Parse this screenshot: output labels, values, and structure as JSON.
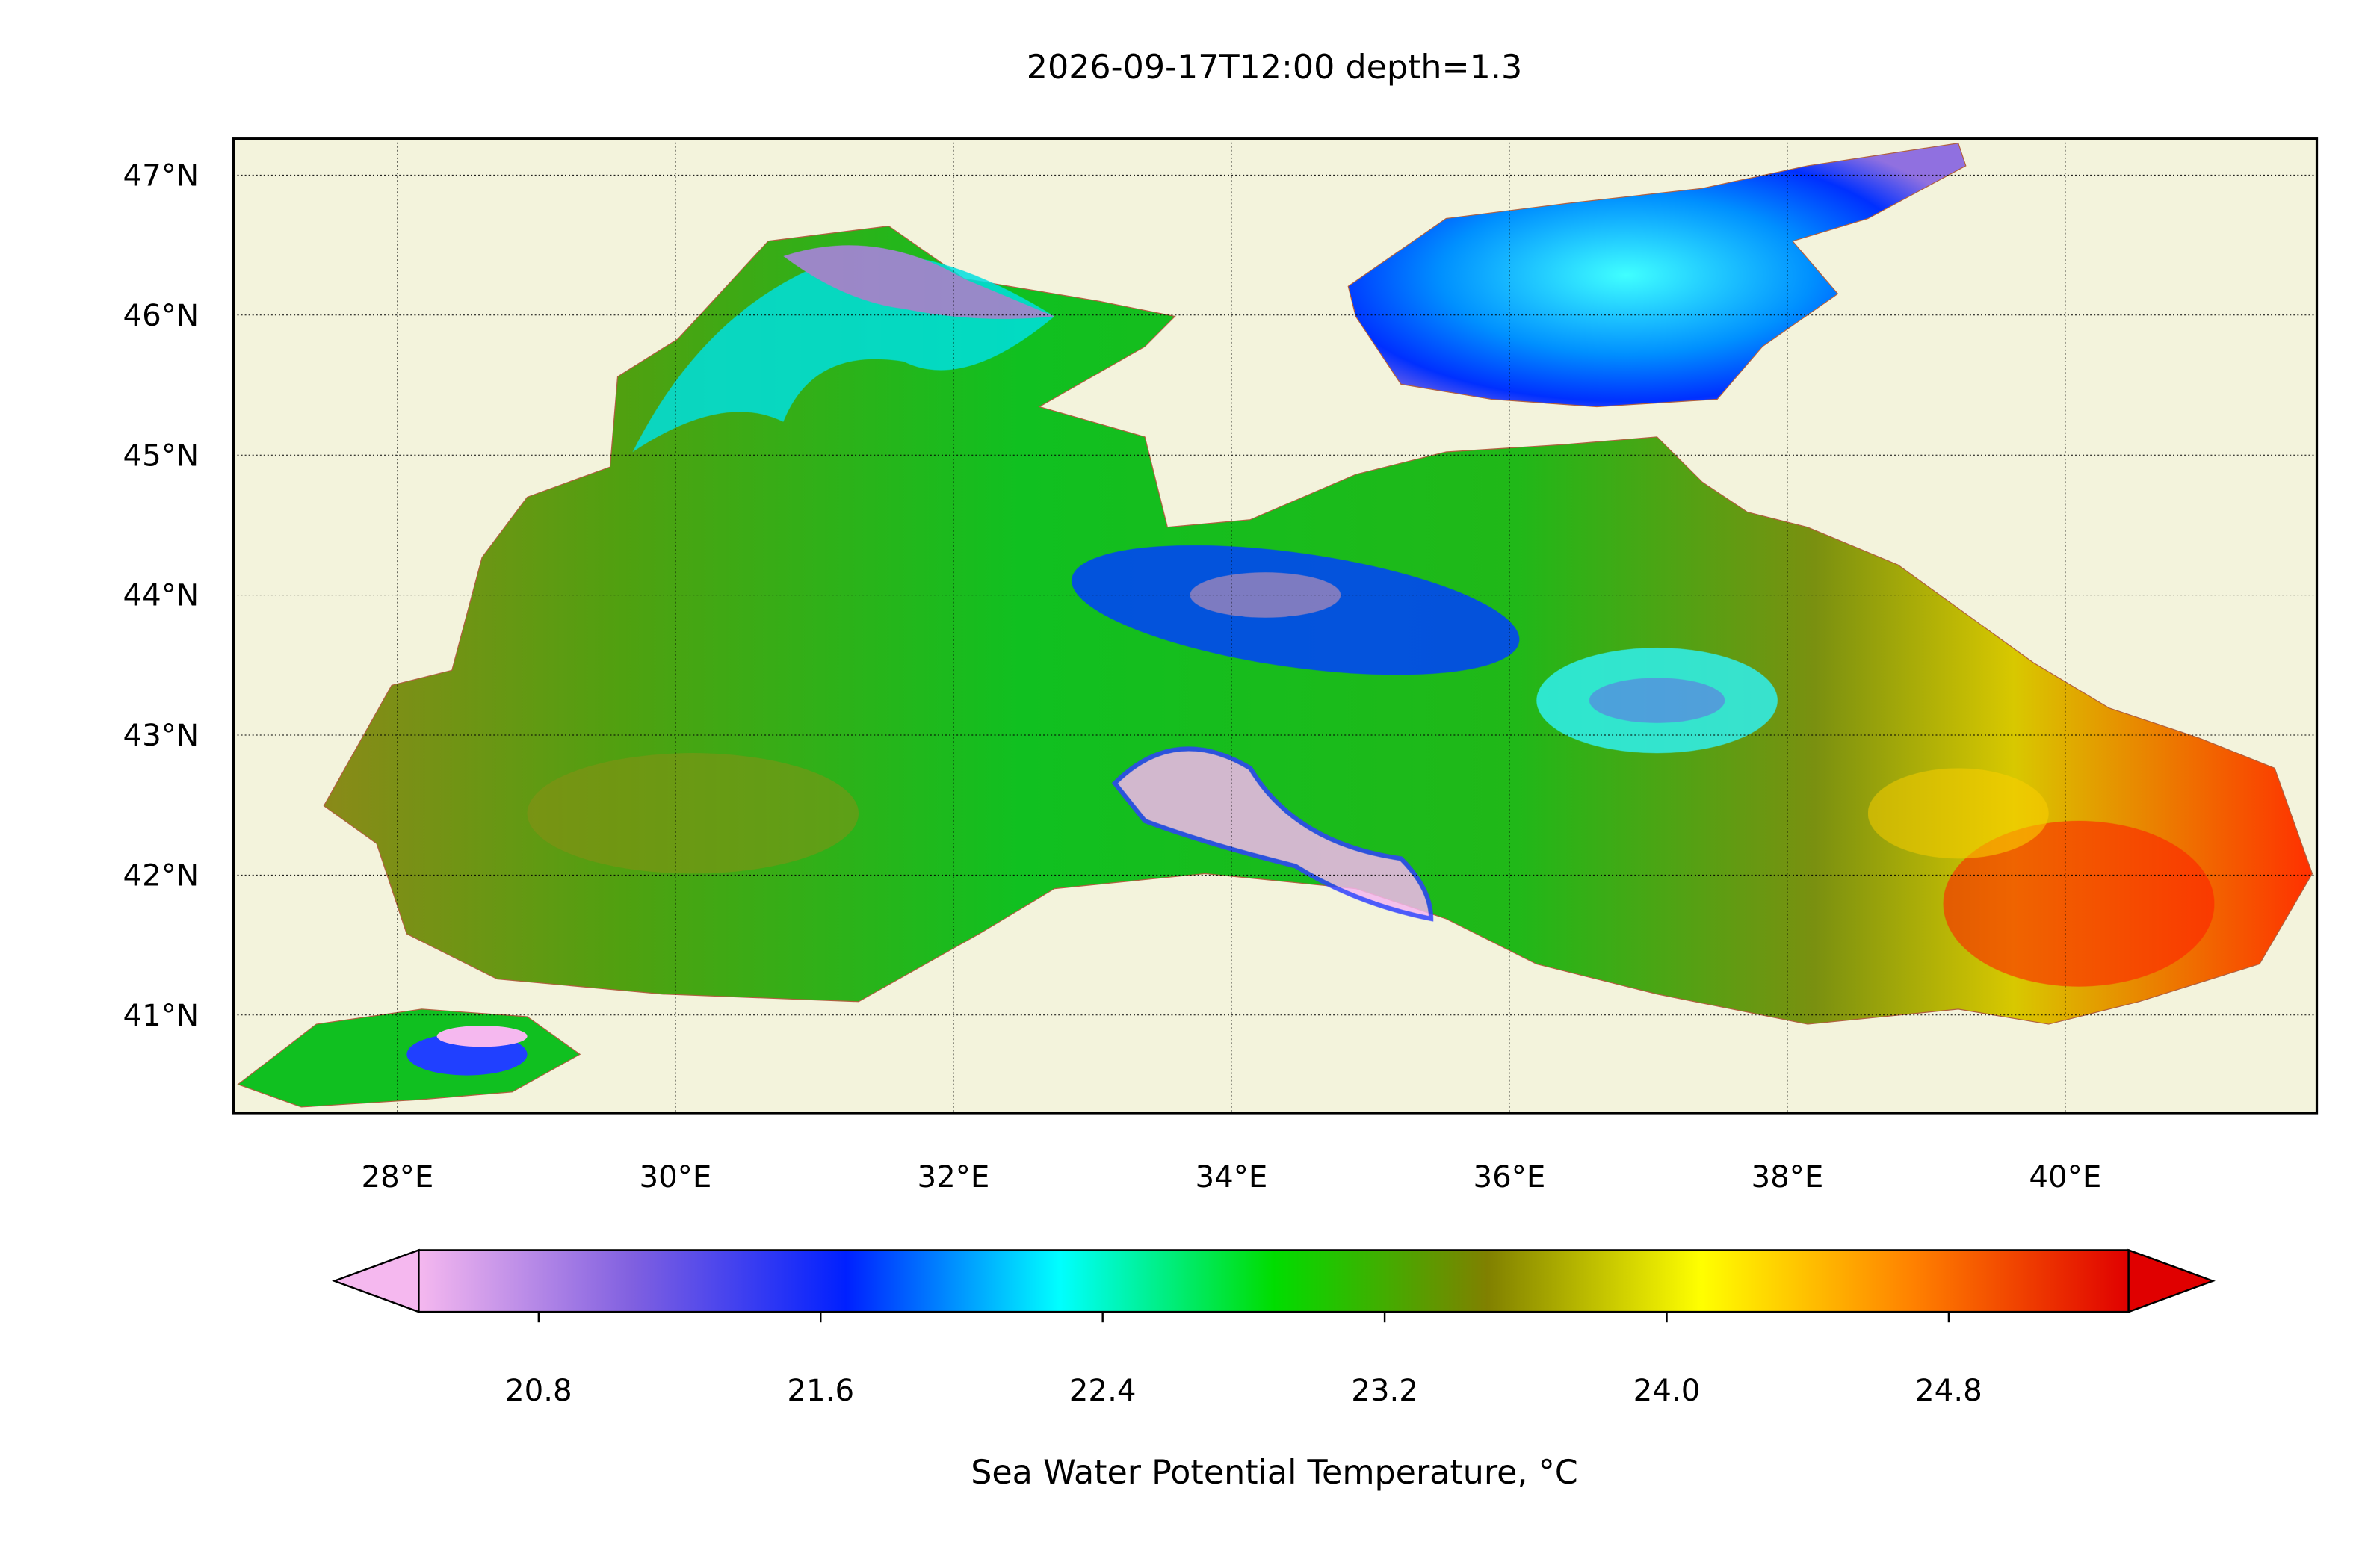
{
  "title": "2026-09-17T12:00 depth=1.3",
  "map": {
    "xlim": [
      26.82,
      41.81
    ],
    "ylim": [
      40.3,
      47.26
    ],
    "grid": true,
    "xticks": [
      {
        "value": 28,
        "label": "28°E"
      },
      {
        "value": 30,
        "label": "30°E"
      },
      {
        "value": 32,
        "label": "32°E"
      },
      {
        "value": 34,
        "label": "34°E"
      },
      {
        "value": 36,
        "label": "36°E"
      },
      {
        "value": 38,
        "label": "38°E"
      },
      {
        "value": 40,
        "label": "40°E"
      }
    ],
    "yticks": [
      {
        "value": 41,
        "label": "41°N"
      },
      {
        "value": 42,
        "label": "42°N"
      },
      {
        "value": 43,
        "label": "43°N"
      },
      {
        "value": 44,
        "label": "44°N"
      },
      {
        "value": 45,
        "label": "45°N"
      },
      {
        "value": 46,
        "label": "46°N"
      },
      {
        "value": 47,
        "label": "47°N"
      }
    ]
  },
  "colorbar": {
    "lim": [
      20.46,
      25.31
    ],
    "extend": "both",
    "ticks": [
      20.8,
      21.6,
      22.4,
      23.2,
      {
        "value": 24,
        "label": "24.0"
      },
      24.8
    ],
    "colors": [
      "#f5b8ef",
      "#8060e0",
      "#0020ff",
      "#00ffff",
      "#00dd00",
      "#808000",
      "#ffff00",
      "#ff8000",
      "#e00000"
    ],
    "label": "Sea Water Potential Temperature, °C"
  }
}
